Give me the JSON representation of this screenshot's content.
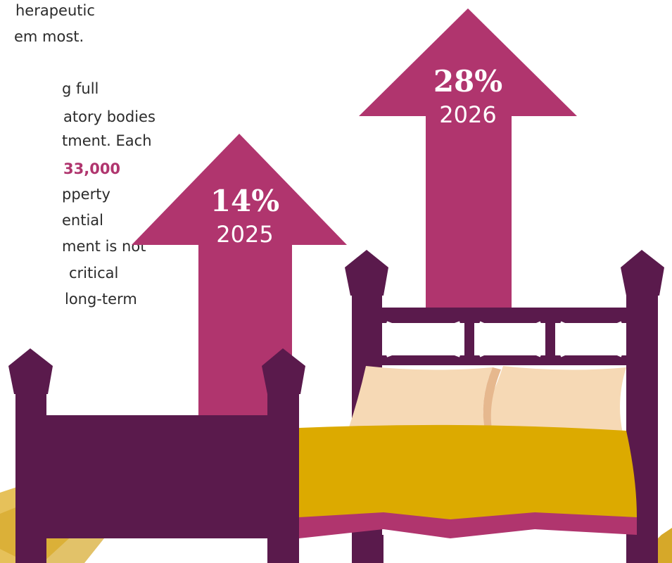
{
  "paragraph_1": [
    "herapeutic",
    "em most."
  ],
  "paragraph_2": {
    "lines_before": [
      "g full",
      "atory bodies",
      "tment. Each"
    ],
    "highlight": "33,000",
    "lines_after": [
      "pperty",
      "ential",
      "ment is not",
      "critical",
      "long-term"
    ]
  },
  "stats": [
    {
      "value": "14%",
      "year": "2025"
    },
    {
      "value": "28%",
      "year": "2026"
    }
  ]
}
